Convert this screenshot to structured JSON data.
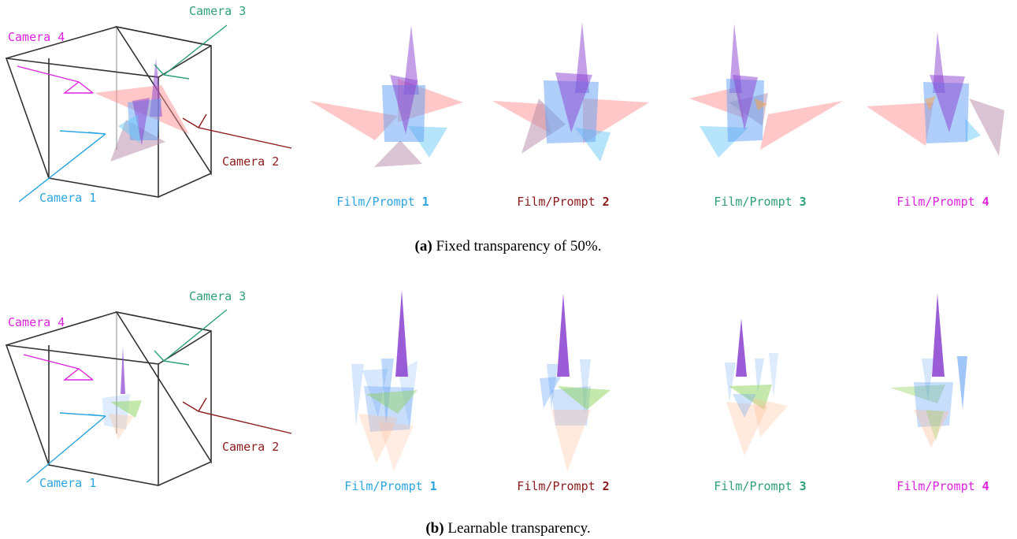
{
  "colors": {
    "camera1": "#2aa5e0",
    "camera2": "#8b1a1a",
    "camera3": "#2ea07a",
    "camera4": "#dd22dd",
    "tri_red": "#ff8f8f",
    "tri_purple": "#8a3fd0",
    "tri_blue": "#5f9ff5",
    "tri_mauve": "#b58aa8",
    "tri_sky": "#6ccaf7",
    "tri_orange": "#ffa040",
    "tri_peach": "#ffb890",
    "tri_green": "#8bd15a",
    "box": "#333333"
  },
  "camera_labels": {
    "c1": "Camera 1",
    "c2": "Camera 2",
    "c3": "Camera 3",
    "c4": "Camera 4"
  },
  "film_prefix": "Film/Prompt ",
  "film_numbers": [
    "1",
    "2",
    "3",
    "4"
  ],
  "panels": [
    {
      "id": "a",
      "caption_label": "(a)",
      "caption_text": " Fixed transparency of 50%.",
      "opacity_mode": "fixed",
      "opacity": 0.5
    },
    {
      "id": "b",
      "caption_label": "(b)",
      "caption_text": " Learnable transparency.",
      "opacity_mode": "learnable"
    }
  ]
}
